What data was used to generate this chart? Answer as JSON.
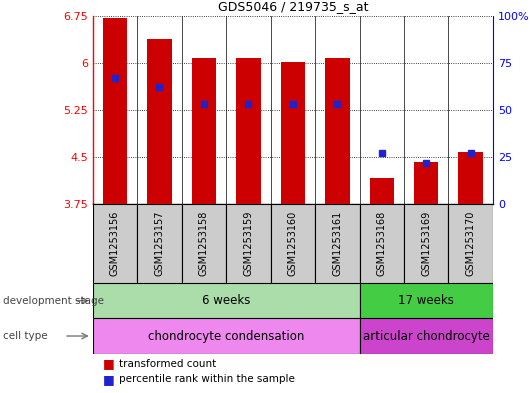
{
  "title": "GDS5046 / 219735_s_at",
  "samples": [
    "GSM1253156",
    "GSM1253157",
    "GSM1253158",
    "GSM1253159",
    "GSM1253160",
    "GSM1253161",
    "GSM1253168",
    "GSM1253169",
    "GSM1253170"
  ],
  "transformed_count": [
    6.72,
    6.38,
    6.08,
    6.07,
    6.02,
    6.08,
    4.17,
    4.43,
    4.58
  ],
  "percentile_rank": [
    67,
    62,
    53,
    53,
    53,
    53,
    27,
    22,
    27
  ],
  "y_min": 3.75,
  "y_max": 6.75,
  "y_ticks": [
    3.75,
    4.5,
    5.25,
    6.0,
    6.75
  ],
  "y_tick_labels": [
    "3.75",
    "4.5",
    "5.25",
    "6",
    "6.75"
  ],
  "right_y_ticks": [
    0,
    25,
    50,
    75,
    100
  ],
  "right_y_tick_labels": [
    "0",
    "25",
    "50",
    "75",
    "100%"
  ],
  "bar_color": "#cc0000",
  "blue_color": "#2222cc",
  "bar_width": 0.55,
  "dev_6w_label": "6 weeks",
  "dev_17w_label": "17 weeks",
  "dev_6w_color": "#aaddaa",
  "dev_17w_color": "#44cc44",
  "cell_cc_label": "chondrocyte condensation",
  "cell_ac_label": "articular chondrocyte",
  "cell_cc_color": "#ee88ee",
  "cell_ac_color": "#cc44cc",
  "left_label_dev": "development stage",
  "left_label_cell": "cell type",
  "legend_tc": "transformed count",
  "legend_pr": "percentile rank within the sample",
  "grid_linestyle": "dotted",
  "axis_bg_color": "#cccccc",
  "n_group1": 6,
  "n_group2": 3
}
